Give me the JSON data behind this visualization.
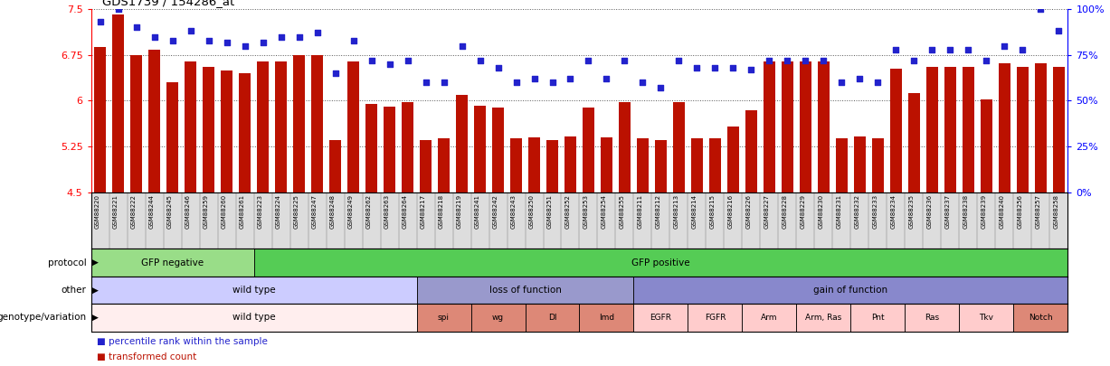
{
  "title": "GDS1739 / 154286_at",
  "samples": [
    "GSM88220",
    "GSM88221",
    "GSM88222",
    "GSM88244",
    "GSM88245",
    "GSM88246",
    "GSM88259",
    "GSM88260",
    "GSM88261",
    "GSM88223",
    "GSM88224",
    "GSM88225",
    "GSM88247",
    "GSM88248",
    "GSM88249",
    "GSM88262",
    "GSM88263",
    "GSM88264",
    "GSM88217",
    "GSM88218",
    "GSM88219",
    "GSM88241",
    "GSM88242",
    "GSM88243",
    "GSM88250",
    "GSM88251",
    "GSM88252",
    "GSM88253",
    "GSM88254",
    "GSM88255",
    "GSM88211",
    "GSM88212",
    "GSM88213",
    "GSM88214",
    "GSM88215",
    "GSM88216",
    "GSM88226",
    "GSM88227",
    "GSM88228",
    "GSM88229",
    "GSM88230",
    "GSM88231",
    "GSM88232",
    "GSM88233",
    "GSM88234",
    "GSM88235",
    "GSM88236",
    "GSM88237",
    "GSM88238",
    "GSM88239",
    "GSM88240",
    "GSM88256",
    "GSM88257",
    "GSM88258"
  ],
  "bar_values": [
    6.88,
    7.42,
    6.75,
    6.83,
    6.3,
    6.65,
    6.55,
    6.5,
    6.45,
    6.65,
    6.65,
    6.75,
    6.75,
    5.35,
    6.65,
    5.95,
    5.9,
    5.98,
    5.35,
    5.38,
    6.1,
    5.92,
    5.88,
    5.38,
    5.4,
    5.35,
    5.42,
    5.88,
    5.4,
    5.98,
    5.38,
    5.35,
    5.98,
    5.38,
    5.38,
    5.58,
    5.85,
    6.65,
    6.65,
    6.65,
    6.65,
    5.38,
    5.42,
    5.38,
    6.53,
    6.12,
    6.55,
    6.55,
    6.55,
    6.02,
    6.62,
    6.55,
    6.62,
    6.55
  ],
  "scatter_values": [
    93,
    100,
    90,
    85,
    83,
    88,
    83,
    82,
    80,
    82,
    85,
    85,
    87,
    65,
    83,
    72,
    70,
    72,
    60,
    60,
    80,
    72,
    68,
    60,
    62,
    60,
    62,
    72,
    62,
    72,
    60,
    57,
    72,
    68,
    68,
    68,
    67,
    72,
    72,
    72,
    72,
    60,
    62,
    60,
    78,
    72,
    78,
    78,
    78,
    72,
    80,
    78,
    100,
    88
  ],
  "ylim_left": [
    4.5,
    7.5
  ],
  "ylim_right": [
    0,
    100
  ],
  "yticks_left": [
    4.5,
    5.25,
    6.0,
    6.75,
    7.5
  ],
  "yticks_right": [
    0,
    25,
    50,
    75,
    100
  ],
  "ytick_labels_left": [
    "4.5",
    "5.25",
    "6",
    "6.75",
    "7.5"
  ],
  "ytick_labels_right": [
    "0%",
    "25%",
    "50%",
    "75%",
    "100%"
  ],
  "bar_color": "#bb1100",
  "scatter_color": "#2222cc",
  "bg_color": "#ffffff",
  "protocol_groups": [
    {
      "label": "GFP negative",
      "start": 0,
      "end": 8,
      "color": "#99dd88"
    },
    {
      "label": "GFP positive",
      "start": 9,
      "end": 53,
      "color": "#55cc55"
    }
  ],
  "other_groups": [
    {
      "label": "wild type",
      "start": 0,
      "end": 17,
      "color": "#ccccff"
    },
    {
      "label": "loss of function",
      "start": 18,
      "end": 29,
      "color": "#9999cc"
    },
    {
      "label": "gain of function",
      "start": 30,
      "end": 53,
      "color": "#8888cc"
    }
  ],
  "genotype_groups": [
    {
      "label": "wild type",
      "start": 0,
      "end": 17,
      "color": "#ffeeee"
    },
    {
      "label": "spi",
      "start": 18,
      "end": 20,
      "color": "#dd8877"
    },
    {
      "label": "wg",
      "start": 21,
      "end": 23,
      "color": "#dd8877"
    },
    {
      "label": "Dl",
      "start": 24,
      "end": 26,
      "color": "#dd8877"
    },
    {
      "label": "Imd",
      "start": 27,
      "end": 29,
      "color": "#dd8877"
    },
    {
      "label": "EGFR",
      "start": 30,
      "end": 32,
      "color": "#ffcccc"
    },
    {
      "label": "FGFR",
      "start": 33,
      "end": 35,
      "color": "#ffcccc"
    },
    {
      "label": "Arm",
      "start": 36,
      "end": 38,
      "color": "#ffcccc"
    },
    {
      "label": "Arm, Ras",
      "start": 39,
      "end": 41,
      "color": "#ffcccc"
    },
    {
      "label": "Pnt",
      "start": 42,
      "end": 44,
      "color": "#ffcccc"
    },
    {
      "label": "Ras",
      "start": 45,
      "end": 47,
      "color": "#ffcccc"
    },
    {
      "label": "Tkv",
      "start": 48,
      "end": 50,
      "color": "#ffcccc"
    },
    {
      "label": "Notch",
      "start": 51,
      "end": 53,
      "color": "#dd8877"
    }
  ],
  "row_labels": [
    "protocol",
    "other",
    "genotype/variation"
  ],
  "legend": [
    {
      "label": "transformed count",
      "color": "#bb1100"
    },
    {
      "label": "percentile rank within the sample",
      "color": "#2222cc"
    }
  ],
  "xtick_bg": "#dddddd"
}
